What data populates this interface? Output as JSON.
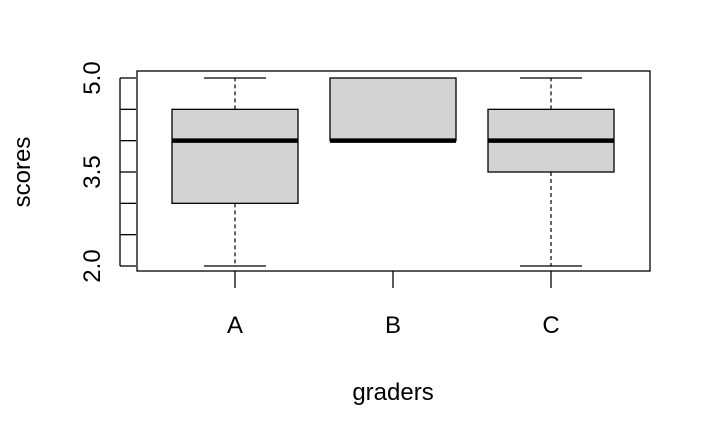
{
  "chart_data": {
    "type": "boxplot",
    "xlabel": "graders",
    "ylabel": "scores",
    "categories": [
      "A",
      "B",
      "C"
    ],
    "ylim": [
      1.9,
      5.15
    ],
    "yticks": [
      2.0,
      2.5,
      3.0,
      3.5,
      4.0,
      4.5,
      5.0
    ],
    "ytick_labels": [
      "2.0",
      "",
      "",
      "3.5",
      "",
      "",
      "5.0"
    ],
    "boxes": [
      {
        "category": "A",
        "min": 2.0,
        "q1": 3.0,
        "median": 4.0,
        "q3": 4.5,
        "max": 5.0
      },
      {
        "category": "B",
        "min": 4.0,
        "q1": 4.0,
        "median": 4.0,
        "q3": 5.0,
        "max": 5.0
      },
      {
        "category": "C",
        "min": 2.0,
        "q1": 3.5,
        "median": 4.0,
        "q3": 4.5,
        "max": 5.0
      }
    ],
    "box_fill": "#d3d3d3",
    "stroke_color": "#000000"
  }
}
